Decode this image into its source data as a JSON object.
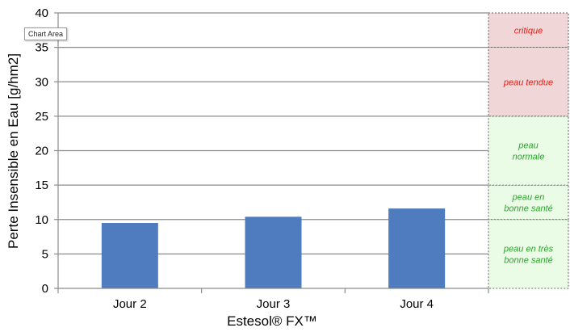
{
  "tooltip": "Chart Area",
  "chart_data": {
    "type": "bar",
    "categories": [
      "Jour 2",
      "Jour 3",
      "Jour 4"
    ],
    "values": [
      9.5,
      10.4,
      11.6
    ],
    "xlabel": "Estesol® FX™",
    "ylabel": "Perte Insensible en Eau [g/hm2]",
    "ylim": [
      0,
      40
    ],
    "yticks": [
      0,
      5,
      10,
      15,
      20,
      25,
      30,
      35,
      40
    ],
    "grid": true,
    "bar_color": "#4f7bbf",
    "zones": [
      {
        "label": [
          "peau en très",
          "bonne santé"
        ],
        "from": 0,
        "to": 10,
        "fill": "#eafbe6",
        "text_color": "#2fa32f"
      },
      {
        "label": [
          "peau en",
          "bonne santé"
        ],
        "from": 10,
        "to": 15,
        "fill": "#eafbe6",
        "text_color": "#2fa32f"
      },
      {
        "label": [
          "peau",
          "normale"
        ],
        "from": 15,
        "to": 25,
        "fill": "#eafbe6",
        "text_color": "#2fa32f"
      },
      {
        "label": [
          "peau tendue"
        ],
        "from": 25,
        "to": 35,
        "fill": "#f0d6d6",
        "text_color": "#e0201c"
      },
      {
        "label": [
          "critique"
        ],
        "from": 35,
        "to": 40,
        "fill": "#f0d6d6",
        "text_color": "#e0201c"
      }
    ]
  }
}
